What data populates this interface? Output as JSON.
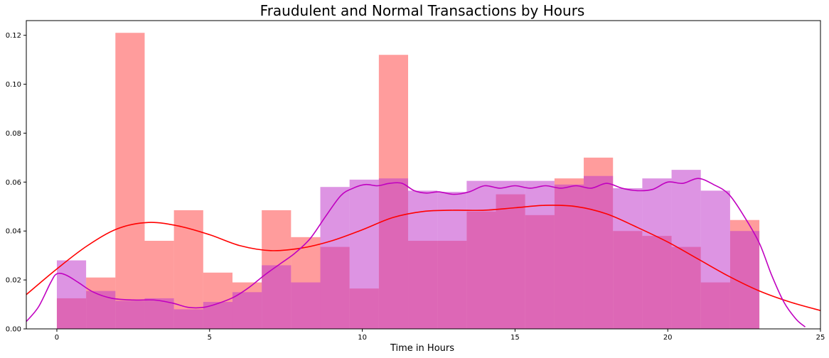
{
  "chart_data": {
    "type": "bar",
    "title": "Fraudulent and Normal Transactions by Hours",
    "xlabel": "Time in Hours",
    "ylabel": "",
    "xlim": [
      -1,
      25
    ],
    "ylim": [
      0,
      0.126
    ],
    "x_ticks": [
      0,
      5,
      10,
      15,
      20,
      25
    ],
    "y_ticks": [
      0.0,
      0.02,
      0.04,
      0.06,
      0.08,
      0.1,
      0.12
    ],
    "y_tick_labels": [
      "0.00",
      "0.02",
      "0.04",
      "0.06",
      "0.08",
      "0.10",
      "0.12"
    ],
    "grid": false,
    "legend": "none",
    "bin_edges": [
      0,
      0.958,
      1.917,
      2.875,
      3.833,
      4.792,
      5.75,
      6.708,
      7.667,
      8.625,
      9.583,
      10.542,
      11.5,
      12.458,
      13.417,
      14.375,
      15.333,
      16.292,
      17.25,
      18.208,
      19.167,
      20.125,
      21.083,
      22.042,
      23.0
    ],
    "series": [
      {
        "kind": "histogram",
        "color": "#ff5a5a",
        "opacity": 0.6,
        "values": [
          0.0125,
          0.021,
          0.121,
          0.036,
          0.0485,
          0.023,
          0.019,
          0.0485,
          0.0375,
          0.0335,
          0.0165,
          0.112,
          0.036,
          0.036,
          0.048,
          0.055,
          0.0465,
          0.0615,
          0.07,
          0.04,
          0.038,
          0.0335,
          0.019,
          0.0445
        ]
      },
      {
        "kind": "histogram",
        "color": "#c13ccc",
        "opacity": 0.55,
        "values": [
          0.028,
          0.0155,
          0.0115,
          0.0125,
          0.008,
          0.011,
          0.015,
          0.026,
          0.019,
          0.058,
          0.061,
          0.0615,
          0.0565,
          0.056,
          0.0605,
          0.0605,
          0.0605,
          0.059,
          0.0625,
          0.0575,
          0.0615,
          0.065,
          0.0565,
          0.04
        ]
      },
      {
        "kind": "kde",
        "color": "#ff0000",
        "x": [
          -1,
          0,
          1,
          2,
          3,
          4,
          5,
          6,
          7,
          8,
          9,
          10,
          11,
          12,
          13,
          14,
          15,
          16,
          17,
          18,
          19,
          20,
          21,
          22,
          23,
          24,
          25
        ],
        "y": [
          0.014,
          0.0245,
          0.034,
          0.041,
          0.0435,
          0.042,
          0.0385,
          0.034,
          0.032,
          0.033,
          0.036,
          0.0405,
          0.0455,
          0.048,
          0.0485,
          0.0485,
          0.0495,
          0.0505,
          0.05,
          0.047,
          0.0415,
          0.0355,
          0.0285,
          0.0215,
          0.0155,
          0.011,
          0.0075
        ]
      },
      {
        "kind": "kde",
        "color": "#c000c0",
        "x": [
          -1,
          -0.6,
          -0.2,
          0,
          0.3,
          0.7,
          1.2,
          1.8,
          2.5,
          3.2,
          3.8,
          4.3,
          4.8,
          5.3,
          5.8,
          6.3,
          6.8,
          7.3,
          7.8,
          8.3,
          8.8,
          9.3,
          9.7,
          10.1,
          10.5,
          10.9,
          11.3,
          11.7,
          12.1,
          12.5,
          13,
          13.5,
          14,
          14.5,
          15,
          15.5,
          16,
          16.5,
          17,
          17.5,
          18,
          18.5,
          19,
          19.5,
          20,
          20.5,
          21,
          21.5,
          22,
          22.5,
          23,
          23.4,
          23.8,
          24.2,
          24.5
        ],
        "y": [
          0.003,
          0.009,
          0.019,
          0.0225,
          0.022,
          0.019,
          0.015,
          0.0125,
          0.0118,
          0.0118,
          0.0105,
          0.0088,
          0.0088,
          0.0105,
          0.013,
          0.017,
          0.022,
          0.0265,
          0.031,
          0.037,
          0.046,
          0.0545,
          0.0575,
          0.059,
          0.0585,
          0.0595,
          0.0595,
          0.0565,
          0.0555,
          0.056,
          0.055,
          0.056,
          0.0585,
          0.0575,
          0.0585,
          0.0575,
          0.0585,
          0.0575,
          0.0585,
          0.0575,
          0.0595,
          0.0575,
          0.0565,
          0.057,
          0.06,
          0.0595,
          0.0615,
          0.059,
          0.055,
          0.046,
          0.035,
          0.022,
          0.011,
          0.004,
          0.0008
        ]
      }
    ]
  }
}
